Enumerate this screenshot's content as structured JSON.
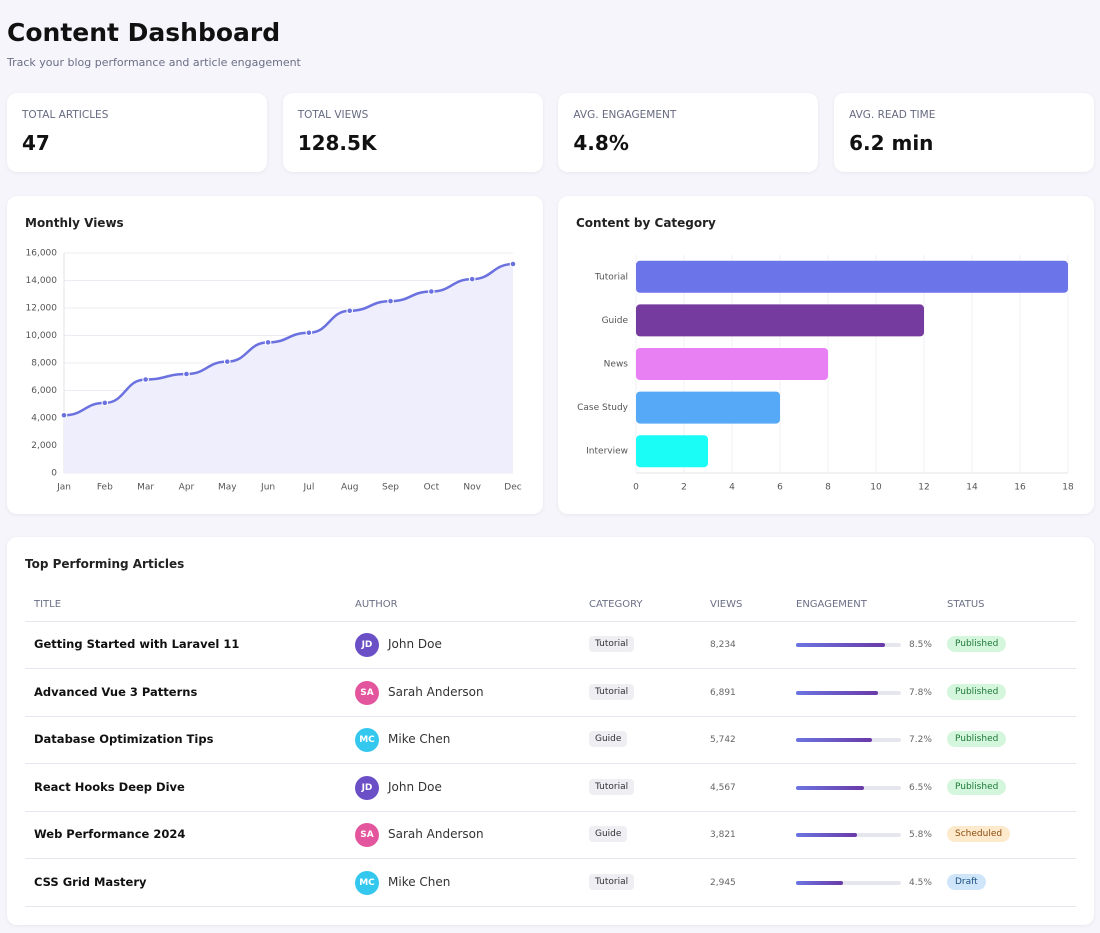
{
  "header": {
    "title": "Content Dashboard",
    "subtitle": "Track your blog performance and article engagement"
  },
  "stats": [
    {
      "label": "TOTAL ARTICLES",
      "value": "47"
    },
    {
      "label": "TOTAL VIEWS",
      "value": "128.5K"
    },
    {
      "label": "AVG. ENGAGEMENT",
      "value": "4.8%"
    },
    {
      "label": "AVG. READ TIME",
      "value": "6.2 min"
    }
  ],
  "chart_data": [
    {
      "type": "line",
      "title": "Monthly Views",
      "color": "#6b72e0",
      "fill": "#eeeefc",
      "categories": [
        "Jan",
        "Feb",
        "Mar",
        "Apr",
        "May",
        "Jun",
        "Jul",
        "Aug",
        "Sep",
        "Oct",
        "Nov",
        "Dec"
      ],
      "values": [
        4200,
        5100,
        6800,
        7200,
        8100,
        9500,
        10200,
        11800,
        12500,
        13200,
        14100,
        15200
      ],
      "ylim": [
        0,
        16000
      ],
      "yticks": [
        0,
        {
          "value": 2000,
          "label": "2,000"
        },
        {
          "value": 4000,
          "label": "4,000"
        },
        {
          "value": 6000,
          "label": "6,000"
        },
        {
          "value": 8000,
          "label": "8,000"
        },
        {
          "value": 10000,
          "label": "10,000"
        },
        {
          "value": 12000,
          "label": "12,000"
        },
        {
          "value": 14000,
          "label": "14,000"
        },
        {
          "value": 16000,
          "label": "16,000"
        }
      ],
      "grid": true
    },
    {
      "type": "barh",
      "title": "Content by Category",
      "categories": [
        "Tutorial",
        "Guide",
        "News",
        "Case Study",
        "Interview"
      ],
      "values": [
        18,
        12,
        8,
        6,
        3
      ],
      "colors": [
        "#6b74e8",
        "#763b9f",
        "#e87ff2",
        "#55a9f6",
        "#1afdf6"
      ],
      "xlim": [
        0,
        18
      ],
      "xticks": [
        0,
        2,
        4,
        6,
        8,
        10,
        12,
        14,
        16,
        18
      ],
      "grid": true
    }
  ],
  "table": {
    "title": "Top Performing Articles",
    "columns": [
      "TITLE",
      "AUTHOR",
      "CATEGORY",
      "VIEWS",
      "ENGAGEMENT",
      "STATUS"
    ],
    "rows": [
      {
        "title": "Getting Started with Laravel 11",
        "initials": "JD",
        "author": "John Doe",
        "avatar_color": "#6a4fc6",
        "category": "Tutorial",
        "views": "8,234",
        "engagement": 8.5,
        "engagement_label": "8.5%",
        "status": "Published",
        "status_color": [
          "#d4f6dc",
          "#1f7a3a"
        ]
      },
      {
        "title": "Advanced Vue 3 Patterns",
        "initials": "SA",
        "author": "Sarah Anderson",
        "avatar_color": "#e3559c",
        "category": "Tutorial",
        "views": "6,891",
        "engagement": 7.8,
        "engagement_label": "7.8%",
        "status": "Published",
        "status_color": [
          "#d4f6dc",
          "#1f7a3a"
        ]
      },
      {
        "title": "Database Optimization Tips",
        "initials": "MC",
        "author": "Mike Chen",
        "avatar_color": "#35c8ef",
        "category": "Guide",
        "views": "5,742",
        "engagement": 7.2,
        "engagement_label": "7.2%",
        "status": "Published",
        "status_color": [
          "#d4f6dc",
          "#1f7a3a"
        ]
      },
      {
        "title": "React Hooks Deep Dive",
        "initials": "JD",
        "author": "John Doe",
        "avatar_color": "#6a4fc6",
        "category": "Tutorial",
        "views": "4,567",
        "engagement": 6.5,
        "engagement_label": "6.5%",
        "status": "Published",
        "status_color": [
          "#d4f6dc",
          "#1f7a3a"
        ]
      },
      {
        "title": "Web Performance 2024",
        "initials": "SA",
        "author": "Sarah Anderson",
        "avatar_color": "#e3559c",
        "category": "Guide",
        "views": "3,821",
        "engagement": 5.8,
        "engagement_label": "5.8%",
        "status": "Scheduled",
        "status_color": [
          "#fde9cc",
          "#8a4b0f"
        ]
      },
      {
        "title": "CSS Grid Mastery",
        "initials": "MC",
        "author": "Mike Chen",
        "avatar_color": "#35c8ef",
        "category": "Tutorial",
        "views": "2,945",
        "engagement": 4.5,
        "engagement_label": "4.5%",
        "status": "Draft",
        "status_color": [
          "#cfe6fa",
          "#1d4f80"
        ]
      }
    ]
  }
}
